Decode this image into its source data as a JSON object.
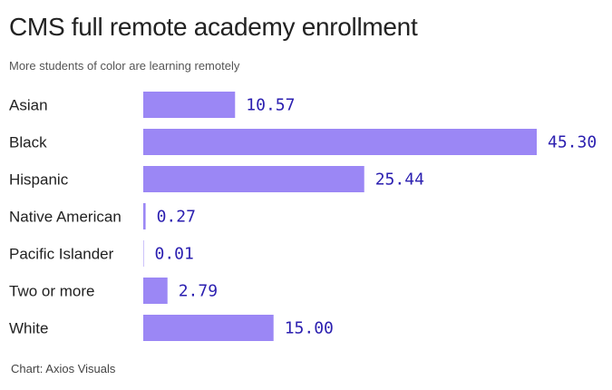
{
  "chart_data": {
    "type": "bar",
    "orientation": "horizontal",
    "title": "CMS full remote academy enrollment",
    "subtitle": "More students of color are learning remotely",
    "categories": [
      "Asian",
      "Black",
      "Hispanic",
      "Native American",
      "Pacific Islander",
      "Two or more",
      "White"
    ],
    "values": [
      10.57,
      45.3,
      25.44,
      0.27,
      0.01,
      2.79,
      15.0
    ],
    "value_labels": [
      "10.57",
      "45.30",
      "25.44",
      "0.27",
      "0.01",
      "2.79",
      "15.00"
    ],
    "bar_color": "#9b87f5",
    "label_color": "#2b1fb0",
    "grid": false,
    "source": "Chart: Axios Visuals"
  }
}
